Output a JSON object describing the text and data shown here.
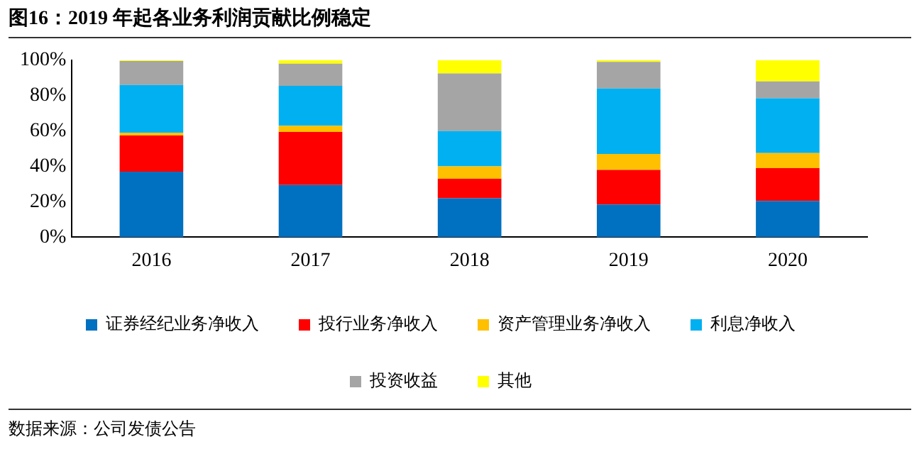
{
  "chart_data": {
    "type": "bar",
    "title": "图16：2019 年起各业务利润贡献比例稳定",
    "stacked": true,
    "categories": [
      "2016",
      "2017",
      "2018",
      "2019",
      "2020"
    ],
    "series": [
      {
        "name": "证券经纪业务净收入",
        "color": "#0070c0",
        "values": [
          37,
          29.5,
          22,
          18.5,
          20.5
        ]
      },
      {
        "name": "投行业务净收入",
        "color": "#ff0000",
        "values": [
          20.5,
          30,
          11,
          19.5,
          18.5
        ]
      },
      {
        "name": "资产管理业务净收入",
        "color": "#ffc000",
        "values": [
          1.5,
          3.5,
          7,
          9,
          8.5
        ]
      },
      {
        "name": "利息净收入",
        "color": "#00b0f0",
        "values": [
          27,
          22.5,
          20,
          37,
          31
        ]
      },
      {
        "name": "投资收益",
        "color": "#a5a5a5",
        "values": [
          13.5,
          12.5,
          32.5,
          15,
          9.5
        ]
      },
      {
        "name": "其他",
        "color": "#ffff00",
        "values": [
          0.5,
          2,
          7.5,
          1,
          12
        ]
      }
    ],
    "ylim": [
      0,
      100
    ],
    "yticks": [
      {
        "value": 0,
        "label": "0%"
      },
      {
        "value": 20,
        "label": "20%"
      },
      {
        "value": 40,
        "label": "40%"
      },
      {
        "value": 60,
        "label": "60%"
      },
      {
        "value": 80,
        "label": "80%"
      },
      {
        "value": 100,
        "label": "100%"
      }
    ],
    "grid": false,
    "legend": "bottom",
    "annotations": [
      "数据来源：公司发债公告"
    ]
  }
}
